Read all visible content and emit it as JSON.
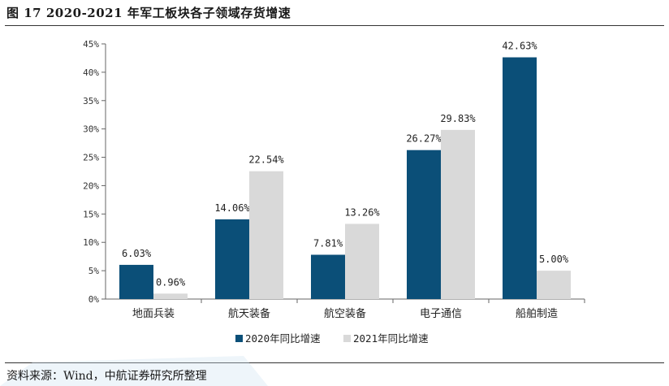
{
  "figure": {
    "title": "图 17 2020-2021 年军工板块各子领域存货增速",
    "source": "资料来源：Wind，中航证券研究所整理"
  },
  "colors": {
    "series_2020": "#0b4f78",
    "series_2021": "#d9d9d9"
  },
  "chart_data": {
    "type": "bar",
    "categories": [
      "地面兵装",
      "航天装备",
      "航空装备",
      "电子通信",
      "船舶制造"
    ],
    "series": [
      {
        "name": "2020年同比增速",
        "values": [
          6.03,
          14.06,
          7.81,
          26.27,
          42.63
        ],
        "labels": [
          "6.03%",
          "14.06%",
          "7.81%",
          "26.27%",
          "42.63%"
        ]
      },
      {
        "name": "2021年同比增速",
        "values": [
          0.96,
          22.54,
          13.26,
          29.83,
          5.0
        ],
        "labels": [
          "0.96%",
          "22.54%",
          "13.26%",
          "29.83%",
          "5.00%"
        ]
      }
    ],
    "ylim": [
      0,
      45
    ],
    "yticks": [
      0,
      5,
      10,
      15,
      20,
      25,
      30,
      35,
      40,
      45
    ],
    "ytick_labels": [
      "0%",
      "5%",
      "10%",
      "15%",
      "20%",
      "25%",
      "30%",
      "35%",
      "40%",
      "45%"
    ],
    "grid": false,
    "legend_position": "bottom-center"
  }
}
